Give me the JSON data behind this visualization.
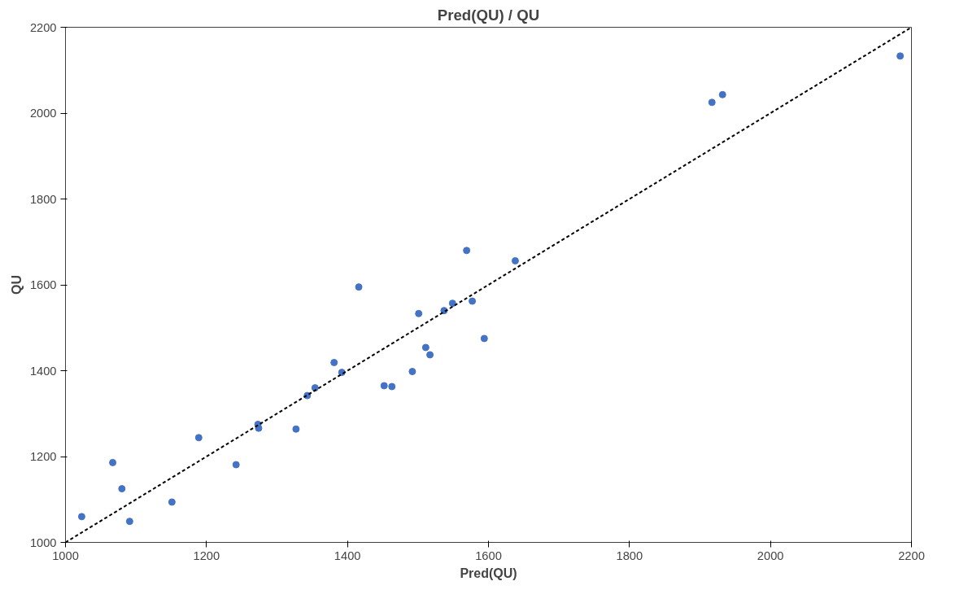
{
  "chart_data": {
    "type": "scatter",
    "title": "Pred(QU) / QU",
    "xlabel": "Pred(QU)",
    "ylabel": "QU",
    "xlim": [
      1000,
      2200
    ],
    "xticks": [
      1000,
      1200,
      1400,
      1600,
      1800,
      2000,
      2200
    ],
    "ylim": [
      1000,
      2200
    ],
    "yticks": [
      1000,
      1200,
      1400,
      1600,
      1800,
      2000,
      2200
    ],
    "grid": false,
    "series": [
      {
        "marker": "circle",
        "color": "#4472c4",
        "x": [
          1023,
          1067,
          1080,
          1091,
          1151,
          1189,
          1242,
          1273,
          1274,
          1327,
          1343,
          1354,
          1381,
          1392,
          1416,
          1452,
          1463,
          1492,
          1501,
          1511,
          1517,
          1537,
          1549,
          1569,
          1577,
          1594,
          1638,
          1917,
          1932,
          2184
        ],
        "values": [
          1060,
          1186,
          1125,
          1049,
          1094,
          1244,
          1181,
          1275,
          1266,
          1264,
          1342,
          1360,
          1419,
          1396,
          1595,
          1365,
          1363,
          1398,
          1533,
          1454,
          1437,
          1540,
          1557,
          1680,
          1562,
          1475,
          1656,
          2025,
          2043,
          2133
        ]
      },
      {
        "type": "line",
        "color": "#000000",
        "line_style": "dashed",
        "marker": "none",
        "x": [
          1000,
          2200
        ],
        "values": [
          1000,
          2200
        ]
      }
    ]
  }
}
